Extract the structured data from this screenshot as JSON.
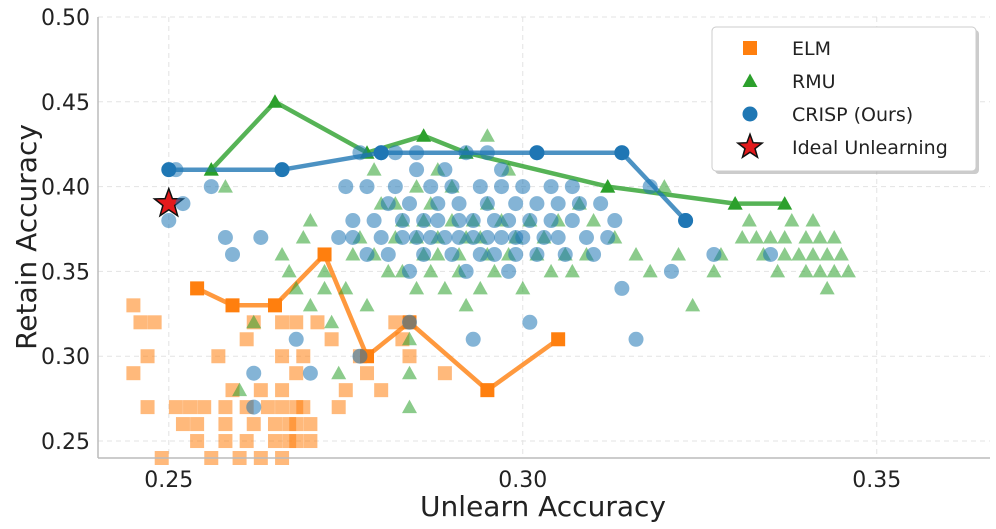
{
  "chart_data": {
    "type": "scatter",
    "xlabel": "Unlearn Accuracy",
    "ylabel": "Retain Accuracy",
    "xlim": [
      0.24,
      0.366
    ],
    "ylim": [
      0.24,
      0.5
    ],
    "xticks": [
      "0.25",
      "0.30",
      "0.35"
    ],
    "yticks": [
      "0.25",
      "0.30",
      "0.35",
      "0.40",
      "0.45",
      "0.50"
    ],
    "grid": true,
    "legend_position": "top-right",
    "series": [
      {
        "name": "ELM",
        "marker": "square",
        "color": "#ff7f0e",
        "frontier": [
          [
            0.254,
            0.34
          ],
          [
            0.259,
            0.33
          ],
          [
            0.265,
            0.33
          ],
          [
            0.272,
            0.36
          ],
          [
            0.278,
            0.3
          ],
          [
            0.284,
            0.32
          ],
          [
            0.295,
            0.28
          ],
          [
            0.305,
            0.31
          ]
        ],
        "points": [
          [
            0.245,
            0.33
          ],
          [
            0.246,
            0.32
          ],
          [
            0.248,
            0.32
          ],
          [
            0.247,
            0.3
          ],
          [
            0.245,
            0.29
          ],
          [
            0.247,
            0.27
          ],
          [
            0.249,
            0.24
          ],
          [
            0.251,
            0.27
          ],
          [
            0.252,
            0.26
          ],
          [
            0.253,
            0.27
          ],
          [
            0.254,
            0.26
          ],
          [
            0.254,
            0.25
          ],
          [
            0.255,
            0.27
          ],
          [
            0.256,
            0.24
          ],
          [
            0.257,
            0.3
          ],
          [
            0.258,
            0.27
          ],
          [
            0.258,
            0.26
          ],
          [
            0.258,
            0.25
          ],
          [
            0.259,
            0.28
          ],
          [
            0.26,
            0.24
          ],
          [
            0.261,
            0.31
          ],
          [
            0.261,
            0.27
          ],
          [
            0.261,
            0.25
          ],
          [
            0.262,
            0.32
          ],
          [
            0.262,
            0.26
          ],
          [
            0.263,
            0.28
          ],
          [
            0.263,
            0.24
          ],
          [
            0.264,
            0.27
          ],
          [
            0.265,
            0.26
          ],
          [
            0.265,
            0.25
          ],
          [
            0.266,
            0.32
          ],
          [
            0.266,
            0.3
          ],
          [
            0.266,
            0.28
          ],
          [
            0.266,
            0.27
          ],
          [
            0.266,
            0.24
          ],
          [
            0.267,
            0.26
          ],
          [
            0.267,
            0.25
          ],
          [
            0.268,
            0.32
          ],
          [
            0.268,
            0.29
          ],
          [
            0.268,
            0.27
          ],
          [
            0.268,
            0.26
          ],
          [
            0.268,
            0.25
          ],
          [
            0.269,
            0.3
          ],
          [
            0.269,
            0.27
          ],
          [
            0.27,
            0.25
          ],
          [
            0.27,
            0.26
          ],
          [
            0.271,
            0.32
          ],
          [
            0.273,
            0.31
          ],
          [
            0.274,
            0.27
          ],
          [
            0.275,
            0.28
          ],
          [
            0.277,
            0.3
          ],
          [
            0.278,
            0.29
          ],
          [
            0.28,
            0.28
          ],
          [
            0.282,
            0.32
          ],
          [
            0.283,
            0.31
          ],
          [
            0.284,
            0.3
          ],
          [
            0.289,
            0.29
          ]
        ]
      },
      {
        "name": "RMU",
        "marker": "triangle",
        "color": "#2ca02c",
        "frontier": [
          [
            0.256,
            0.41
          ],
          [
            0.265,
            0.45
          ],
          [
            0.278,
            0.42
          ],
          [
            0.286,
            0.43
          ],
          [
            0.292,
            0.42
          ],
          [
            0.312,
            0.4
          ],
          [
            0.33,
            0.39
          ],
          [
            0.337,
            0.39
          ]
        ],
        "points": [
          [
            0.256,
            0.41
          ],
          [
            0.258,
            0.4
          ],
          [
            0.26,
            0.28
          ],
          [
            0.262,
            0.32
          ],
          [
            0.266,
            0.36
          ],
          [
            0.267,
            0.35
          ],
          [
            0.268,
            0.34
          ],
          [
            0.269,
            0.37
          ],
          [
            0.27,
            0.33
          ],
          [
            0.27,
            0.38
          ],
          [
            0.272,
            0.35
          ],
          [
            0.272,
            0.34
          ],
          [
            0.273,
            0.32
          ],
          [
            0.274,
            0.29
          ],
          [
            0.275,
            0.34
          ],
          [
            0.276,
            0.36
          ],
          [
            0.277,
            0.37
          ],
          [
            0.278,
            0.33
          ],
          [
            0.279,
            0.36
          ],
          [
            0.279,
            0.41
          ],
          [
            0.28,
            0.39
          ],
          [
            0.281,
            0.35
          ],
          [
            0.282,
            0.37
          ],
          [
            0.282,
            0.39
          ],
          [
            0.283,
            0.35
          ],
          [
            0.283,
            0.38
          ],
          [
            0.284,
            0.29
          ],
          [
            0.284,
            0.31
          ],
          [
            0.284,
            0.27
          ],
          [
            0.285,
            0.34
          ],
          [
            0.285,
            0.37
          ],
          [
            0.285,
            0.4
          ],
          [
            0.286,
            0.38
          ],
          [
            0.286,
            0.36
          ],
          [
            0.287,
            0.35
          ],
          [
            0.287,
            0.39
          ],
          [
            0.288,
            0.36
          ],
          [
            0.288,
            0.37
          ],
          [
            0.288,
            0.41
          ],
          [
            0.289,
            0.34
          ],
          [
            0.29,
            0.38
          ],
          [
            0.29,
            0.4
          ],
          [
            0.291,
            0.35
          ],
          [
            0.291,
            0.36
          ],
          [
            0.292,
            0.37
          ],
          [
            0.292,
            0.33
          ],
          [
            0.293,
            0.38
          ],
          [
            0.294,
            0.37
          ],
          [
            0.294,
            0.34
          ],
          [
            0.295,
            0.36
          ],
          [
            0.295,
            0.43
          ],
          [
            0.295,
            0.39
          ],
          [
            0.296,
            0.35
          ],
          [
            0.297,
            0.38
          ],
          [
            0.298,
            0.36
          ],
          [
            0.298,
            0.41
          ],
          [
            0.299,
            0.37
          ],
          [
            0.3,
            0.34
          ],
          [
            0.301,
            0.38
          ],
          [
            0.302,
            0.36
          ],
          [
            0.303,
            0.37
          ],
          [
            0.304,
            0.35
          ],
          [
            0.305,
            0.38
          ],
          [
            0.306,
            0.36
          ],
          [
            0.307,
            0.35
          ],
          [
            0.308,
            0.39
          ],
          [
            0.309,
            0.36
          ],
          [
            0.31,
            0.38
          ],
          [
            0.312,
            0.4
          ],
          [
            0.313,
            0.37
          ],
          [
            0.316,
            0.36
          ],
          [
            0.318,
            0.35
          ],
          [
            0.32,
            0.4
          ],
          [
            0.322,
            0.36
          ],
          [
            0.324,
            0.33
          ],
          [
            0.327,
            0.35
          ],
          [
            0.328,
            0.36
          ],
          [
            0.33,
            0.39
          ],
          [
            0.331,
            0.37
          ],
          [
            0.332,
            0.38
          ],
          [
            0.333,
            0.37
          ],
          [
            0.334,
            0.36
          ],
          [
            0.335,
            0.37
          ],
          [
            0.336,
            0.35
          ],
          [
            0.337,
            0.37
          ],
          [
            0.337,
            0.36
          ],
          [
            0.338,
            0.38
          ],
          [
            0.339,
            0.36
          ],
          [
            0.34,
            0.37
          ],
          [
            0.34,
            0.35
          ],
          [
            0.341,
            0.38
          ],
          [
            0.341,
            0.36
          ],
          [
            0.342,
            0.35
          ],
          [
            0.342,
            0.37
          ],
          [
            0.343,
            0.36
          ],
          [
            0.343,
            0.34
          ],
          [
            0.344,
            0.37
          ],
          [
            0.344,
            0.35
          ],
          [
            0.345,
            0.36
          ],
          [
            0.346,
            0.35
          ]
        ]
      },
      {
        "name": "CRISP (Ours)",
        "marker": "circle",
        "color": "#1f77b4",
        "frontier": [
          [
            0.25,
            0.41
          ],
          [
            0.266,
            0.41
          ],
          [
            0.28,
            0.42
          ],
          [
            0.302,
            0.42
          ],
          [
            0.314,
            0.42
          ],
          [
            0.323,
            0.38
          ]
        ],
        "points": [
          [
            0.25,
            0.38
          ],
          [
            0.251,
            0.41
          ],
          [
            0.252,
            0.39
          ],
          [
            0.256,
            0.4
          ],
          [
            0.258,
            0.37
          ],
          [
            0.259,
            0.36
          ],
          [
            0.262,
            0.29
          ],
          [
            0.262,
            0.27
          ],
          [
            0.263,
            0.37
          ],
          [
            0.268,
            0.31
          ],
          [
            0.27,
            0.29
          ],
          [
            0.274,
            0.37
          ],
          [
            0.275,
            0.4
          ],
          [
            0.276,
            0.38
          ],
          [
            0.276,
            0.37
          ],
          [
            0.277,
            0.3
          ],
          [
            0.277,
            0.42
          ],
          [
            0.278,
            0.36
          ],
          [
            0.278,
            0.4
          ],
          [
            0.279,
            0.38
          ],
          [
            0.28,
            0.37
          ],
          [
            0.28,
            0.42
          ],
          [
            0.281,
            0.36
          ],
          [
            0.281,
            0.39
          ],
          [
            0.282,
            0.4
          ],
          [
            0.282,
            0.42
          ],
          [
            0.283,
            0.37
          ],
          [
            0.283,
            0.38
          ],
          [
            0.284,
            0.32
          ],
          [
            0.284,
            0.35
          ],
          [
            0.284,
            0.39
          ],
          [
            0.285,
            0.37
          ],
          [
            0.285,
            0.41
          ],
          [
            0.285,
            0.42
          ],
          [
            0.286,
            0.38
          ],
          [
            0.286,
            0.36
          ],
          [
            0.287,
            0.4
          ],
          [
            0.287,
            0.37
          ],
          [
            0.288,
            0.39
          ],
          [
            0.288,
            0.38
          ],
          [
            0.289,
            0.37
          ],
          [
            0.289,
            0.41
          ],
          [
            0.29,
            0.4
          ],
          [
            0.29,
            0.36
          ],
          [
            0.291,
            0.38
          ],
          [
            0.291,
            0.37
          ],
          [
            0.291,
            0.39
          ],
          [
            0.292,
            0.35
          ],
          [
            0.292,
            0.42
          ],
          [
            0.293,
            0.38
          ],
          [
            0.293,
            0.37
          ],
          [
            0.293,
            0.31
          ],
          [
            0.294,
            0.4
          ],
          [
            0.294,
            0.36
          ],
          [
            0.295,
            0.39
          ],
          [
            0.295,
            0.37
          ],
          [
            0.295,
            0.42
          ],
          [
            0.296,
            0.38
          ],
          [
            0.296,
            0.36
          ],
          [
            0.297,
            0.37
          ],
          [
            0.297,
            0.4
          ],
          [
            0.297,
            0.41
          ],
          [
            0.298,
            0.38
          ],
          [
            0.298,
            0.35
          ],
          [
            0.299,
            0.37
          ],
          [
            0.299,
            0.39
          ],
          [
            0.299,
            0.36
          ],
          [
            0.3,
            0.37
          ],
          [
            0.3,
            0.4
          ],
          [
            0.301,
            0.38
          ],
          [
            0.301,
            0.32
          ],
          [
            0.302,
            0.36
          ],
          [
            0.302,
            0.42
          ],
          [
            0.302,
            0.39
          ],
          [
            0.303,
            0.37
          ],
          [
            0.304,
            0.38
          ],
          [
            0.304,
            0.4
          ],
          [
            0.305,
            0.39
          ],
          [
            0.305,
            0.37
          ],
          [
            0.306,
            0.36
          ],
          [
            0.307,
            0.38
          ],
          [
            0.307,
            0.4
          ],
          [
            0.308,
            0.39
          ],
          [
            0.309,
            0.37
          ],
          [
            0.31,
            0.36
          ],
          [
            0.311,
            0.39
          ],
          [
            0.312,
            0.37
          ],
          [
            0.313,
            0.38
          ],
          [
            0.314,
            0.42
          ],
          [
            0.314,
            0.34
          ],
          [
            0.316,
            0.31
          ],
          [
            0.318,
            0.4
          ],
          [
            0.321,
            0.35
          ],
          [
            0.323,
            0.38
          ],
          [
            0.327,
            0.36
          ],
          [
            0.335,
            0.36
          ]
        ]
      },
      {
        "name": "Ideal Unlearning",
        "marker": "star",
        "color": "#e31a1c",
        "points": [
          [
            0.25,
            0.39
          ]
        ]
      }
    ]
  }
}
